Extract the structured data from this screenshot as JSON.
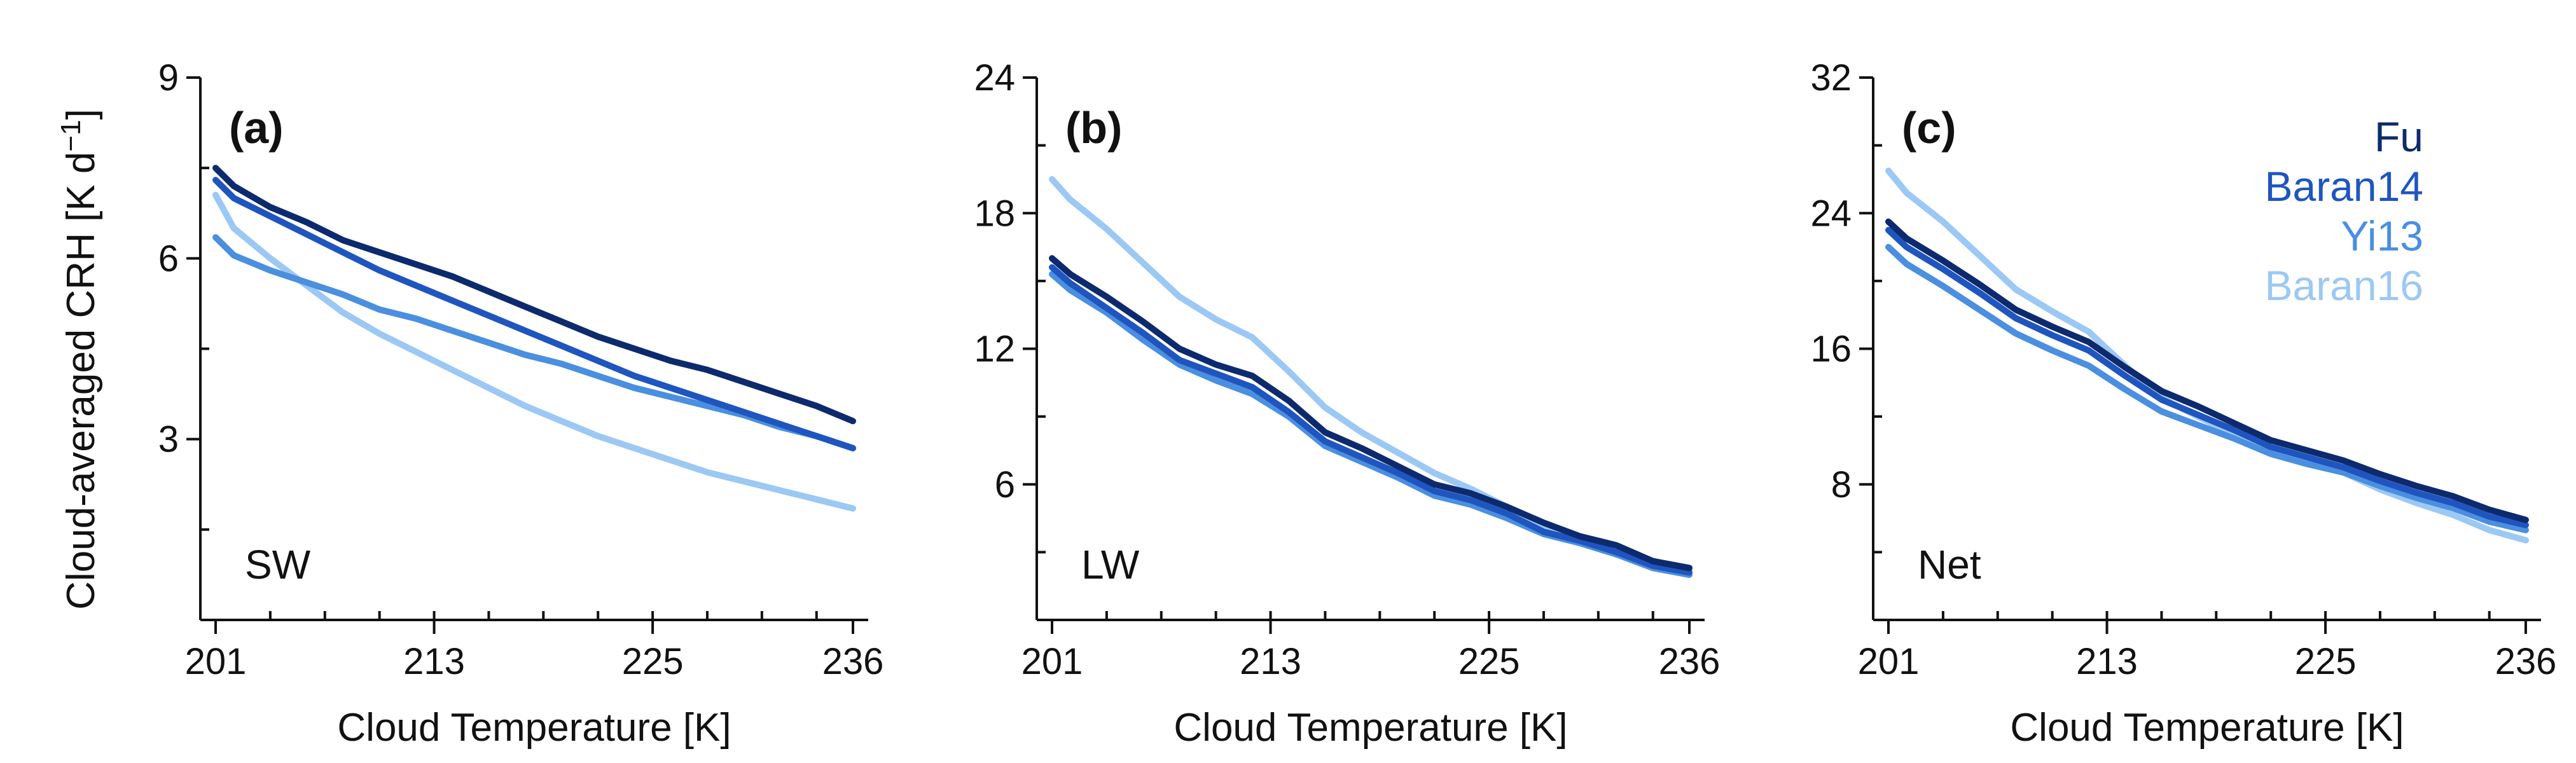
{
  "figure": {
    "ylabel_main": "Cloud-averaged CRH [K d",
    "ylabel_exp": "−1",
    "ylabel_end": "]"
  },
  "legend": [
    {
      "name": "Fu",
      "color": "#0d2a6e"
    },
    {
      "name": "Baran14",
      "color": "#1f55bf"
    },
    {
      "name": "Yi13",
      "color": "#4a8fe0"
    },
    {
      "name": "Baran16",
      "color": "#9cc8f4"
    }
  ],
  "chart_data": [
    {
      "type": "line",
      "panel_label": "(a)",
      "annotation": "SW",
      "xlabel": "Cloud Temperature [K]",
      "ylabel": "Cloud-averaged CRH [K d−1]",
      "xlim": [
        201,
        236
      ],
      "ylim": [
        0,
        9
      ],
      "xticks": [
        201,
        213,
        225,
        236
      ],
      "yticks": [
        3,
        6,
        9
      ],
      "x": [
        201,
        202,
        204,
        206,
        208,
        210,
        212,
        214,
        216,
        218,
        220,
        222,
        224,
        226,
        228,
        230,
        232,
        234,
        236
      ],
      "series": [
        {
          "name": "Fu",
          "color": "#0d2a6e",
          "values": [
            7.5,
            7.2,
            6.85,
            6.6,
            6.3,
            6.1,
            5.9,
            5.7,
            5.45,
            5.2,
            4.95,
            4.7,
            4.5,
            4.3,
            4.15,
            3.95,
            3.75,
            3.55,
            3.3
          ]
        },
        {
          "name": "Baran14",
          "color": "#1f55bf",
          "values": [
            7.3,
            7.0,
            6.7,
            6.4,
            6.1,
            5.8,
            5.55,
            5.3,
            5.05,
            4.8,
            4.55,
            4.3,
            4.05,
            3.85,
            3.65,
            3.45,
            3.25,
            3.05,
            2.85
          ]
        },
        {
          "name": "Yi13",
          "color": "#4a8fe0",
          "values": [
            6.35,
            6.05,
            5.8,
            5.6,
            5.4,
            5.15,
            5.0,
            4.8,
            4.6,
            4.4,
            4.25,
            4.05,
            3.85,
            3.7,
            3.55,
            3.4,
            3.2,
            3.05,
            2.85
          ]
        },
        {
          "name": "Baran16",
          "color": "#9cc8f4",
          "values": [
            7.05,
            6.5,
            6.0,
            5.55,
            5.1,
            4.75,
            4.45,
            4.15,
            3.85,
            3.55,
            3.3,
            3.05,
            2.85,
            2.65,
            2.45,
            2.3,
            2.15,
            2.0,
            1.85
          ]
        }
      ]
    },
    {
      "type": "line",
      "panel_label": "(b)",
      "annotation": "LW",
      "xlabel": "Cloud Temperature [K]",
      "ylabel": "",
      "xlim": [
        201,
        236
      ],
      "ylim": [
        0,
        24
      ],
      "xticks": [
        201,
        213,
        225,
        236
      ],
      "yticks": [
        6,
        12,
        18,
        24
      ],
      "x": [
        201,
        202,
        204,
        206,
        208,
        210,
        212,
        214,
        216,
        218,
        220,
        222,
        224,
        226,
        228,
        230,
        232,
        234,
        236
      ],
      "series": [
        {
          "name": "Fu",
          "color": "#0d2a6e",
          "values": [
            16.0,
            15.3,
            14.3,
            13.2,
            12.0,
            11.3,
            10.8,
            9.7,
            8.3,
            7.6,
            6.8,
            6.0,
            5.6,
            5.0,
            4.3,
            3.7,
            3.3,
            2.6,
            2.3
          ]
        },
        {
          "name": "Baran14",
          "color": "#1f55bf",
          "values": [
            15.6,
            14.9,
            13.8,
            12.7,
            11.5,
            10.9,
            10.3,
            9.2,
            7.9,
            7.2,
            6.5,
            5.7,
            5.3,
            4.7,
            3.9,
            3.5,
            3.0,
            2.4,
            2.1
          ]
        },
        {
          "name": "Yi13",
          "color": "#4a8fe0",
          "values": [
            15.3,
            14.6,
            13.6,
            12.4,
            11.3,
            10.6,
            10.0,
            9.0,
            7.7,
            7.0,
            6.3,
            5.5,
            5.1,
            4.5,
            3.8,
            3.4,
            2.9,
            2.3,
            2.0
          ]
        },
        {
          "name": "Baran16",
          "color": "#9cc8f4",
          "values": [
            19.5,
            18.6,
            17.3,
            15.8,
            14.3,
            13.3,
            12.5,
            11.0,
            9.4,
            8.3,
            7.4,
            6.5,
            5.8,
            5.0,
            4.2,
            3.6,
            3.1,
            2.6,
            2.2
          ]
        }
      ]
    },
    {
      "type": "line",
      "panel_label": "(c)",
      "annotation": "Net",
      "xlabel": "Cloud Temperature [K]",
      "ylabel": "",
      "xlim": [
        201,
        236
      ],
      "ylim": [
        0,
        32
      ],
      "xticks": [
        201,
        213,
        225,
        236
      ],
      "yticks": [
        8,
        16,
        24,
        32
      ],
      "x": [
        201,
        202,
        204,
        206,
        208,
        210,
        212,
        214,
        216,
        218,
        220,
        222,
        224,
        226,
        228,
        230,
        232,
        234,
        236
      ],
      "series": [
        {
          "name": "Fu",
          "color": "#0d2a6e",
          "values": [
            23.5,
            22.5,
            21.2,
            19.8,
            18.3,
            17.3,
            16.4,
            14.9,
            13.5,
            12.6,
            11.6,
            10.6,
            10.0,
            9.4,
            8.6,
            7.9,
            7.3,
            6.5,
            5.9
          ]
        },
        {
          "name": "Baran14",
          "color": "#1f55bf",
          "values": [
            23.0,
            22.0,
            20.7,
            19.3,
            17.8,
            16.8,
            15.9,
            14.4,
            13.0,
            12.1,
            11.2,
            10.2,
            9.6,
            9.0,
            8.2,
            7.5,
            6.9,
            6.1,
            5.6
          ]
        },
        {
          "name": "Yi13",
          "color": "#4a8fe0",
          "values": [
            22.0,
            21.0,
            19.7,
            18.3,
            16.9,
            15.9,
            15.0,
            13.6,
            12.3,
            11.5,
            10.7,
            9.8,
            9.2,
            8.7,
            7.9,
            7.2,
            6.6,
            5.8,
            5.3
          ]
        },
        {
          "name": "Baran16",
          "color": "#9cc8f4",
          "values": [
            26.5,
            25.2,
            23.5,
            21.5,
            19.5,
            18.2,
            17.0,
            15.0,
            13.1,
            12.0,
            10.9,
            9.9,
            9.3,
            8.7,
            7.7,
            6.9,
            6.2,
            5.3,
            4.7
          ]
        }
      ]
    }
  ]
}
